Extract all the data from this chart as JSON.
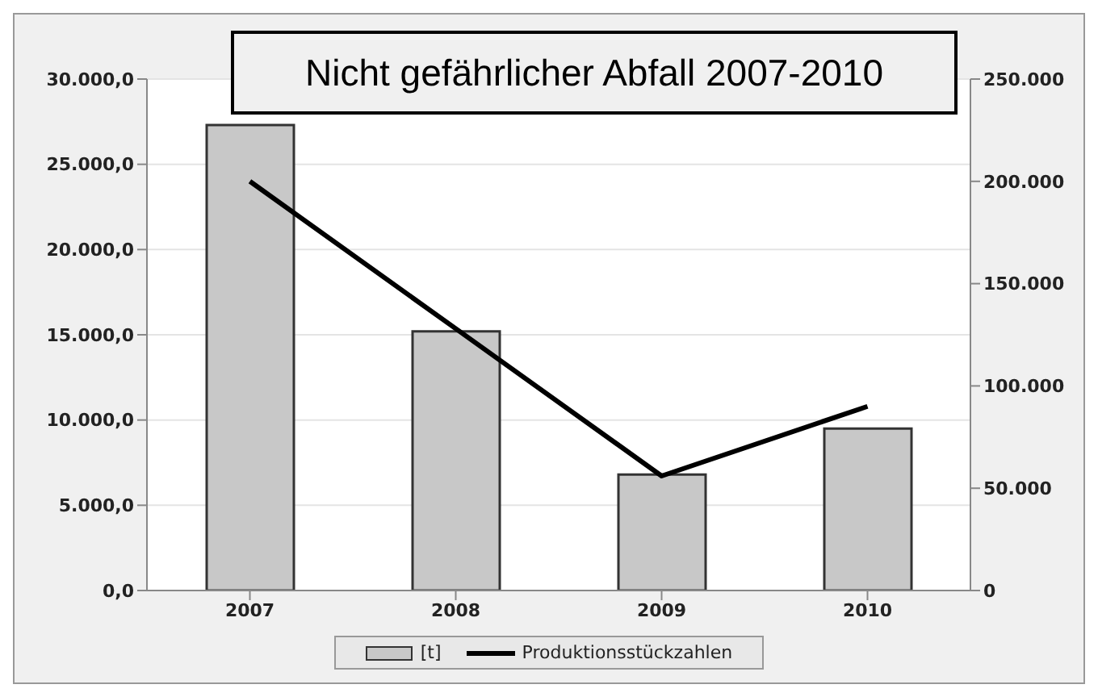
{
  "chart_data": {
    "type": "bar",
    "title": "Nicht gefährlicher Abfall 2007-2010",
    "categories": [
      "2007",
      "2008",
      "2009",
      "2010"
    ],
    "series": [
      {
        "name": "[t]",
        "color": "#c8c8c8",
        "values": [
          27300,
          15200,
          6800,
          9500
        ]
      },
      {
        "name": "Produktionsstückzahlen",
        "type": "line",
        "axis": "y2",
        "color": "#000000",
        "values": [
          200000,
          128000,
          56000,
          90000
        ]
      }
    ],
    "ylim": [
      0,
      30000
    ],
    "yticks": [
      {
        "value": 0,
        "label": "0,0"
      },
      {
        "value": 5000,
        "label": "5.000,0"
      },
      {
        "value": 10000,
        "label": "10.000,0"
      },
      {
        "value": 15000,
        "label": "15.000,0"
      },
      {
        "value": 20000,
        "label": "20.000,0"
      },
      {
        "value": 25000,
        "label": "25.000,0"
      },
      {
        "value": 30000,
        "label": "30.000,0"
      }
    ],
    "y2lim": [
      0,
      250000
    ],
    "y2ticks": [
      0,
      {
        "value": 50000,
        "label": "50.000"
      },
      {
        "value": 100000,
        "label": "100.000"
      },
      {
        "value": 150000,
        "label": "150.000"
      },
      {
        "value": 200000,
        "label": "200.000"
      },
      {
        "value": 250000,
        "label": "250.000"
      }
    ],
    "grid": "y",
    "legend": "bottom",
    "marker": "none"
  }
}
